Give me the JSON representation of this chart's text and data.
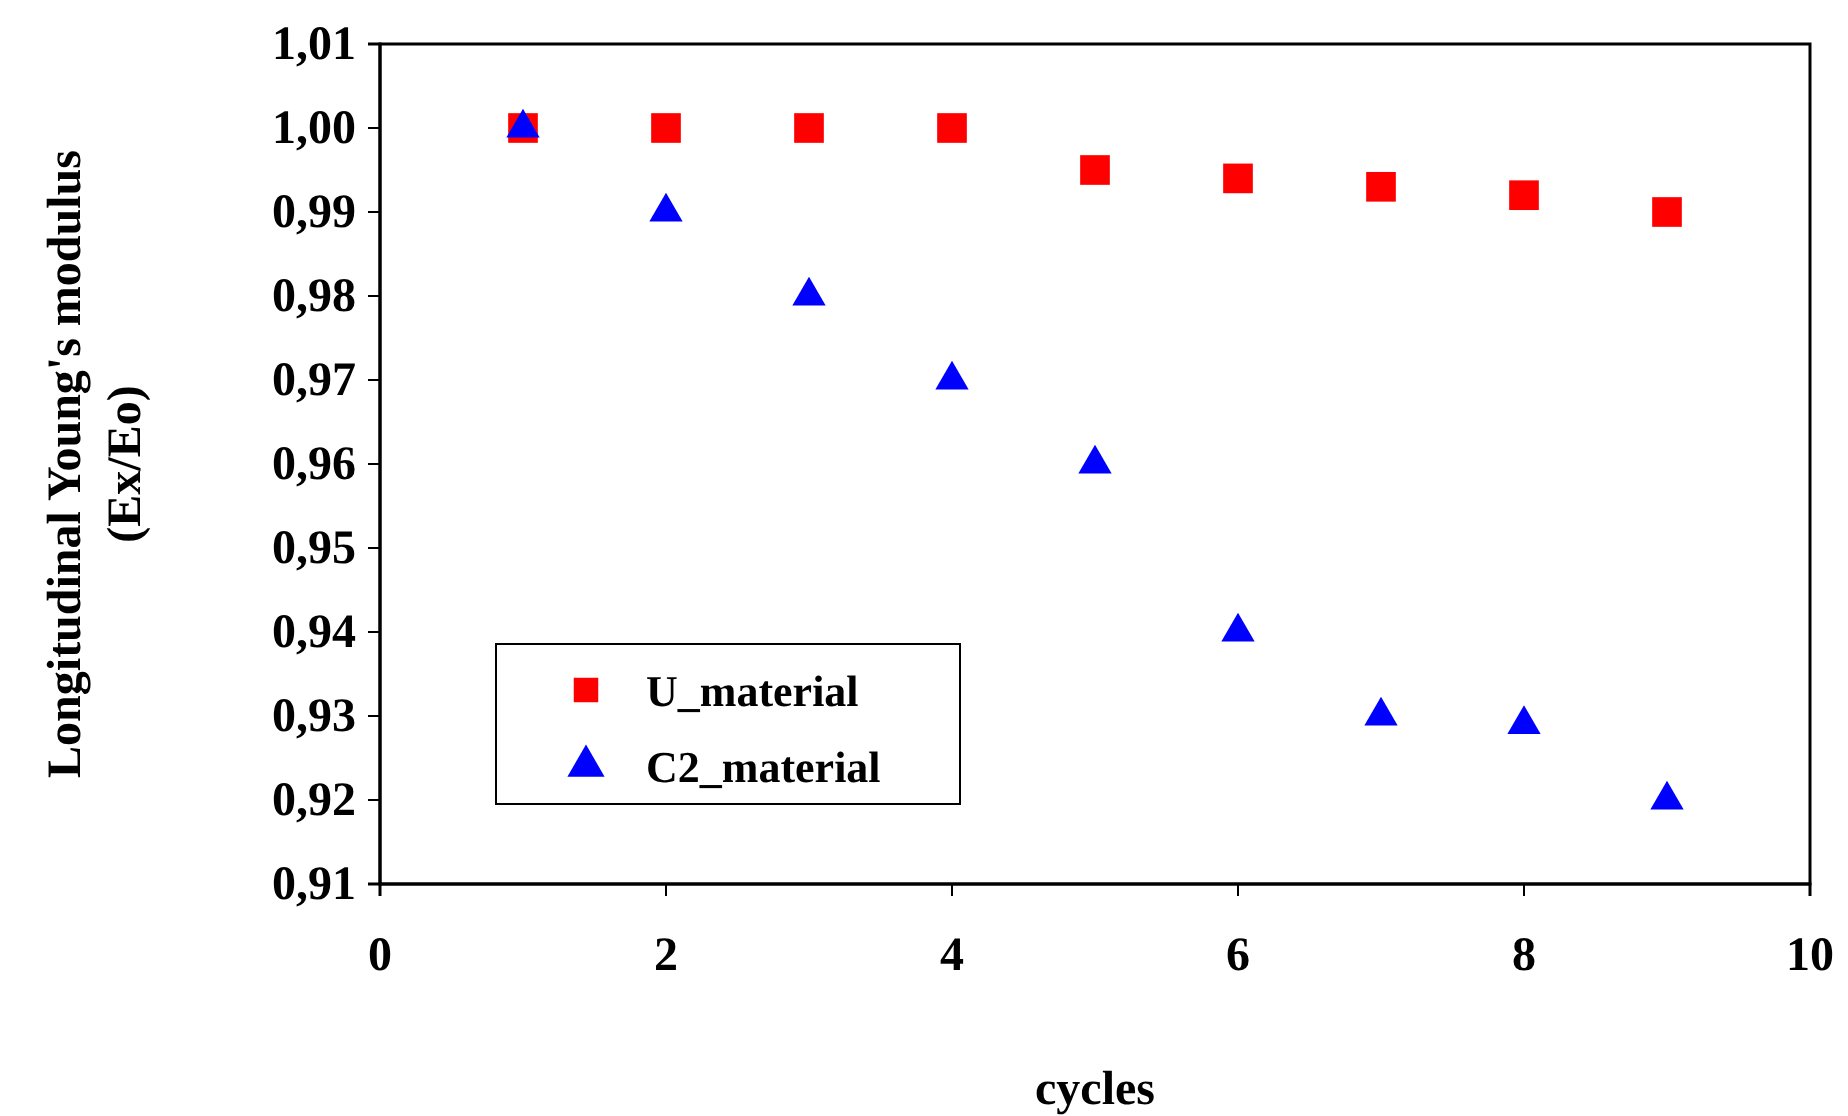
{
  "chart_data": {
    "type": "scatter",
    "xlabel": "cycles",
    "ylabel": "Longitudinal Young's modulus\n(Ex/Eo)",
    "x": [
      1,
      2,
      3,
      4,
      5,
      6,
      7,
      8,
      9
    ],
    "series": [
      {
        "name": "U_material",
        "color": "#ff0000",
        "marker": "square",
        "values": [
          1.0,
          1.0,
          1.0,
          1.0,
          0.995,
          0.994,
          0.993,
          0.992,
          0.99
        ]
      },
      {
        "name": "C2_material",
        "color": "#0000ff",
        "marker": "triangle",
        "values": [
          1.0,
          0.99,
          0.98,
          0.97,
          0.96,
          0.94,
          0.93,
          0.929,
          0.92
        ]
      }
    ],
    "xlim": [
      0,
      10
    ],
    "xticks": [
      0,
      2,
      4,
      6,
      8,
      10
    ],
    "ylim": [
      0.91,
      1.01
    ],
    "yticks": [
      {
        "value": 0.91,
        "label": "0,91"
      },
      {
        "value": 0.92,
        "label": "0,92"
      },
      {
        "value": 0.93,
        "label": "0,93"
      },
      {
        "value": 0.94,
        "label": "0,94"
      },
      {
        "value": 0.95,
        "label": "0,95"
      },
      {
        "value": 0.96,
        "label": "0,96"
      },
      {
        "value": 0.97,
        "label": "0,97"
      },
      {
        "value": 0.98,
        "label": "0,98"
      },
      {
        "value": 0.99,
        "label": "0,99"
      },
      {
        "value": 1.0,
        "label": "1,00"
      },
      {
        "value": 1.01,
        "label": "1,01"
      }
    ],
    "grid": false,
    "legend": "bottom left"
  }
}
